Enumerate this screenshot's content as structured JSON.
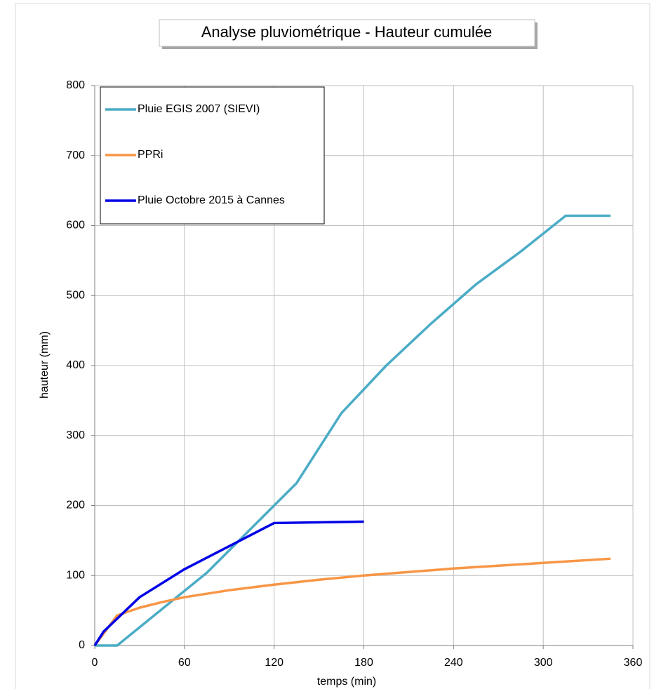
{
  "chart_data": {
    "type": "line",
    "title": "Analyse pluviométrique - Hauteur cumulée",
    "xlabel": "temps (min)",
    "ylabel": "hauteur  (mm)",
    "xlim": [
      0,
      360
    ],
    "xticks": [
      0,
      60,
      120,
      180,
      240,
      300,
      360
    ],
    "ylim": [
      0,
      800
    ],
    "yticks": [
      0,
      100,
      200,
      300,
      400,
      500,
      600,
      700,
      800
    ],
    "grid": true,
    "legend": "upper left",
    "series": [
      {
        "name": "Pluie EGIS 2007 (SIEVI)",
        "color": "#4bacc6",
        "x": [
          0,
          15,
          75,
          135,
          165,
          195,
          225,
          255,
          285,
          315,
          345
        ],
        "values": [
          0,
          0,
          104,
          232,
          332,
          400,
          460,
          516,
          563,
          614,
          614
        ]
      },
      {
        "name": "PPRi",
        "color": "#f79646",
        "x": [
          0,
          15,
          30,
          45,
          60,
          90,
          120,
          150,
          180,
          210,
          240,
          270,
          300,
          345
        ],
        "values": [
          0,
          43,
          54,
          62,
          69,
          79,
          87,
          94,
          100,
          105,
          110,
          114,
          118,
          124
        ]
      },
      {
        "name": "Pluie Octobre 2015 à Cannes",
        "color": "#0000e6",
        "x": [
          0,
          6,
          30,
          60,
          120,
          180
        ],
        "values": [
          0,
          20,
          69,
          109,
          175,
          177
        ]
      }
    ]
  }
}
